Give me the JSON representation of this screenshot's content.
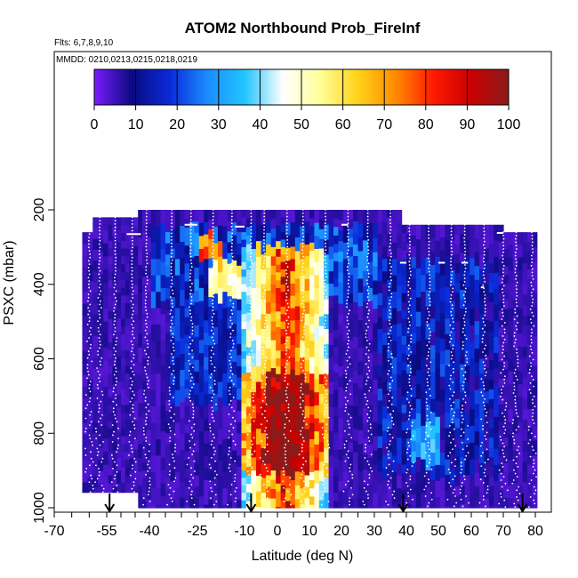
{
  "chart_data": {
    "type": "heatmap",
    "title": "ATOM2 Northbound Prob_FireInf",
    "flights_note": "Flts: 6,7,8,9,10",
    "dates_note": "MMDD: 0210,0213,0215,0218,0219",
    "xlabel": "Latitude (deg N)",
    "ylabel": "PSXC (mbar)",
    "xlim": [
      -70,
      85
    ],
    "ylim": [
      1000,
      100
    ],
    "y_axis_reversed": true,
    "x_tick_labels": [
      "-70",
      "-55",
      "-40",
      "-25",
      "-10",
      "0",
      "10",
      "20",
      "30",
      "40",
      "50",
      "60",
      "70",
      "80"
    ],
    "x_ticks": [
      -70,
      -55,
      -40,
      -25,
      -10,
      0,
      10,
      20,
      30,
      40,
      50,
      60,
      70,
      80
    ],
    "x_minor_ticks": [
      -65,
      -60,
      -50,
      -45,
      -35,
      -30,
      -20,
      -15,
      -5,
      5,
      15,
      25,
      35,
      45,
      55,
      65,
      75
    ],
    "y_ticks": [
      200,
      400,
      600,
      800,
      1000
    ],
    "y_tick_labels": [
      "200",
      "400",
      "600",
      "800",
      "1000"
    ],
    "colorbar": {
      "min": 0,
      "max": 100,
      "tick_labels": [
        "0",
        "10",
        "20",
        "30",
        "40",
        "50",
        "60",
        "70",
        "80",
        "90",
        "100"
      ],
      "ticks": [
        0,
        10,
        20,
        30,
        40,
        50,
        60,
        70,
        80,
        90,
        100
      ],
      "colors": [
        "#7a1cff",
        "#0a0a80",
        "#0a2ad8",
        "#1b8cff",
        "#22c5ff",
        "#ffffff",
        "#ffff99",
        "#ffd21a",
        "#ff8a00",
        "#ff1a00",
        "#c80000",
        "#8b1a1a"
      ]
    },
    "profile_arrow_latitudes": [
      -54,
      -8,
      39,
      76
    ],
    "grid": false,
    "legend": "colorbar-top"
  }
}
